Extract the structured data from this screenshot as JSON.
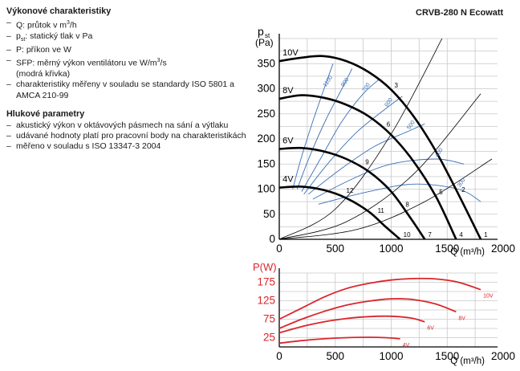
{
  "model_title": "CRVB-280 N Ecowatt",
  "performance": {
    "title": "Výkonové charakteristiky",
    "items": [
      {
        "parts": [
          [
            "Q: průtok v m",
            ""
          ],
          [
            "3",
            "sup"
          ],
          [
            "/h",
            ""
          ]
        ]
      },
      {
        "parts": [
          [
            "p",
            ""
          ],
          [
            "st",
            "sub"
          ],
          [
            ": statický tlak v Pa",
            ""
          ]
        ]
      },
      {
        "parts": [
          [
            "P: příkon ve W",
            ""
          ]
        ]
      },
      {
        "parts": [
          [
            "SFP: měrný výkon ventilátoru ve W/m",
            ""
          ],
          [
            "3",
            "sup"
          ],
          [
            "/s",
            ""
          ]
        ]
      },
      {
        "parts": [
          [
            "(modrá křivka)",
            ""
          ]
        ]
      },
      {
        "parts": [
          [
            "charakteristiky měřeny v souladu se standardy ISO 5801 a AMCA 210-99",
            ""
          ]
        ]
      }
    ]
  },
  "noise": {
    "title": "Hlukové parametry",
    "items": [
      "akustický výkon v oktávových pásmech na sání a výtlaku",
      "udávané hodnoty platí pro pracovní body na charakteristikách",
      "měřeno v souladu s ISO 13347-3 2004"
    ]
  },
  "chart_data": [
    {
      "type": "line",
      "ylabel_main": "p",
      "ylabel_sub": "st",
      "yunit": "(Pa)",
      "xlabel": "Q (m³/h)",
      "xlim": [
        0,
        1950
      ],
      "ylim": [
        0,
        400
      ],
      "xticks": [
        0,
        500,
        1000,
        1500,
        2000
      ],
      "yticks": [
        0,
        50,
        100,
        150,
        200,
        250,
        300,
        350
      ],
      "grid": true,
      "series": [
        {
          "name": "10V",
          "x": [
            0,
            200,
            400,
            600,
            800,
            1000,
            1200,
            1400,
            1600,
            1800
          ],
          "values": [
            355,
            362,
            365,
            355,
            333,
            298,
            245,
            175,
            90,
            0
          ]
        },
        {
          "name": "8V",
          "x": [
            0,
            200,
            400,
            600,
            800,
            1000,
            1200,
            1400,
            1580
          ],
          "values": [
            280,
            287,
            282,
            268,
            245,
            208,
            155,
            85,
            0
          ]
        },
        {
          "name": "6V",
          "x": [
            0,
            200,
            400,
            600,
            800,
            1000,
            1180,
            1300
          ],
          "values": [
            180,
            182,
            175,
            160,
            135,
            95,
            40,
            0
          ]
        },
        {
          "name": "4V",
          "x": [
            0,
            200,
            400,
            600,
            800,
            950,
            1080
          ],
          "values": [
            103,
            105,
            98,
            82,
            55,
            25,
            0
          ]
        }
      ],
      "sfp_curves": [
        {
          "label": "1100",
          "x": [
            120,
            200,
            300,
            400,
            480
          ],
          "values": [
            100,
            165,
            235,
            300,
            350
          ]
        },
        {
          "label": "900",
          "x": [
            160,
            280,
            420,
            560,
            650
          ],
          "values": [
            100,
            170,
            240,
            300,
            340
          ]
        },
        {
          "label": "700",
          "x": [
            200,
            380,
            560,
            750,
            900
          ],
          "values": [
            95,
            165,
            235,
            290,
            320
          ]
        },
        {
          "label": "600",
          "x": [
            220,
            450,
            700,
            950,
            1100
          ],
          "values": [
            90,
            155,
            215,
            260,
            285
          ]
        },
        {
          "label": "500",
          "x": [
            260,
            550,
            850,
            1150,
            1300
          ],
          "values": [
            90,
            140,
            185,
            215,
            230
          ]
        },
        {
          "label": "400",
          "x": [
            300,
            650,
            1000,
            1400,
            1650
          ],
          "values": [
            80,
            120,
            150,
            160,
            150
          ]
        },
        {
          "label": "300",
          "x": [
            350,
            800,
            1200,
            1600,
            1800
          ],
          "values": [
            70,
            95,
            110,
            100,
            75
          ]
        }
      ],
      "operating_points": [
        {
          "label": "1",
          "x": 1800,
          "y": 0
        },
        {
          "label": "2",
          "x": 1600,
          "y": 90
        },
        {
          "label": "3",
          "x": 1000,
          "y": 298
        },
        {
          "label": "4",
          "x": 1580,
          "y": 0
        },
        {
          "label": "5",
          "x": 1400,
          "y": 85
        },
        {
          "label": "6",
          "x": 930,
          "y": 220
        },
        {
          "label": "7",
          "x": 1300,
          "y": 0
        },
        {
          "label": "8",
          "x": 1100,
          "y": 60
        },
        {
          "label": "9",
          "x": 740,
          "y": 145
        },
        {
          "label": "10",
          "x": 1080,
          "y": 0
        },
        {
          "label": "11",
          "x": 850,
          "y": 48
        },
        {
          "label": "12",
          "x": 570,
          "y": 88
        }
      ]
    },
    {
      "type": "line",
      "ylabel": "P(W)",
      "xlabel": "Q (m³/h)",
      "xlim": [
        0,
        1950
      ],
      "ylim": [
        0,
        200
      ],
      "xticks": [
        0,
        500,
        1000,
        1500,
        2000
      ],
      "yticks": [
        25,
        75,
        125,
        175
      ],
      "grid": true,
      "series": [
        {
          "name": "10V",
          "x": [
            0,
            200,
            400,
            600,
            800,
            1000,
            1200,
            1400,
            1600,
            1800
          ],
          "values": [
            75,
            105,
            135,
            158,
            172,
            181,
            185,
            184,
            175,
            155
          ]
        },
        {
          "name": "8V",
          "x": [
            0,
            200,
            400,
            600,
            800,
            1000,
            1200,
            1400,
            1580
          ],
          "values": [
            50,
            75,
            96,
            113,
            124,
            130,
            128,
            116,
            95
          ]
        },
        {
          "name": "6V",
          "x": [
            0,
            200,
            400,
            600,
            800,
            1000,
            1180,
            1300
          ],
          "values": [
            38,
            55,
            68,
            77,
            82,
            83,
            78,
            68
          ]
        },
        {
          "name": "4V",
          "x": [
            0,
            200,
            400,
            600,
            800,
            950,
            1080
          ],
          "values": [
            10,
            17,
            22,
            25,
            26,
            25,
            22
          ]
        }
      ]
    }
  ]
}
